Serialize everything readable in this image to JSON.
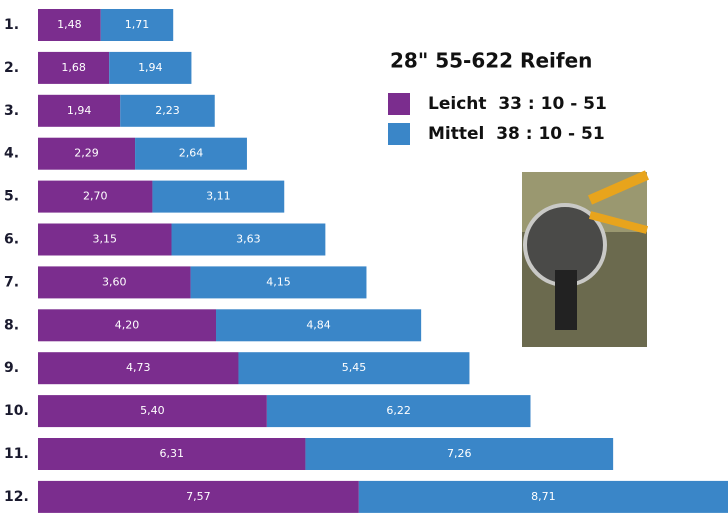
{
  "chart_data": {
    "type": "bar",
    "stacked": true,
    "orientation": "horizontal",
    "title": "28\" 55-622 Reifen",
    "categories": [
      "1.",
      "2.",
      "3.",
      "4.",
      "5.",
      "6.",
      "7.",
      "8.",
      "9.",
      "10.",
      "11.",
      "12."
    ],
    "series": [
      {
        "name": "Leicht  33 : 10 - 51",
        "color": "#7b2d8e",
        "values": [
          1.48,
          1.68,
          1.94,
          2.29,
          2.7,
          3.15,
          3.6,
          4.2,
          4.73,
          5.4,
          6.31,
          7.57
        ],
        "value_labels": [
          "1,48",
          "1,68",
          "1,94",
          "2,29",
          "2,70",
          "3,15",
          "3,60",
          "4,20",
          "4,73",
          "5,40",
          "6,31",
          "7,57"
        ]
      },
      {
        "name": "Mittel  38 : 10 - 51",
        "color": "#3a86c8",
        "values": [
          1.71,
          1.94,
          2.23,
          2.64,
          3.11,
          3.63,
          4.15,
          4.84,
          5.45,
          6.22,
          7.26,
          8.71
        ],
        "value_labels": [
          "1,71",
          "1,94",
          "2,23",
          "2,64",
          "3,11",
          "3,63",
          "4,15",
          "4,84",
          "5,45",
          "6,22",
          "7,26",
          "8,71"
        ]
      }
    ]
  }
}
